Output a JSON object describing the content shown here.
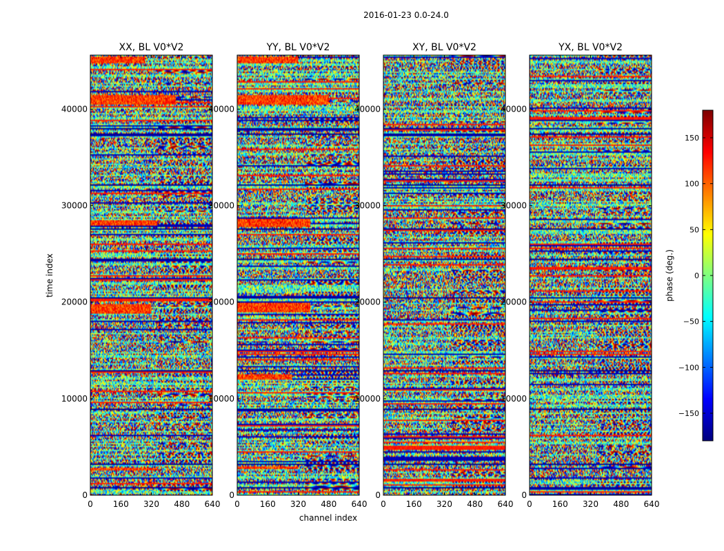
{
  "figure_title": "2016-01-23 0.0-24.0",
  "chart_data": {
    "type": "heatmap",
    "shared_axes": {
      "xlabel": "channel index",
      "ylabel": "time index",
      "xlim": [
        0,
        640
      ],
      "ylim": [
        0,
        45600
      ],
      "xticks": [
        0,
        160,
        320,
        480,
        640
      ],
      "xtick_labels": [
        "0",
        "160",
        "320",
        "480",
        "640"
      ],
      "yticks": [
        0,
        10000,
        20000,
        30000,
        40000
      ],
      "ytick_labels": [
        "0",
        "10000",
        "20000",
        "30000",
        "40000"
      ]
    },
    "panels": [
      {
        "title": "XX, BL V0*V2",
        "seed": 11,
        "warm_bands": [
          [
            44800,
            45400,
            0.45
          ],
          [
            40500,
            41500,
            0.7
          ],
          [
            27900,
            28500,
            0.55
          ],
          [
            18800,
            19800,
            0.5
          ],
          [
            2600,
            2900,
            0.55
          ]
        ]
      },
      {
        "title": "YY, BL V0*V2",
        "seed": 23,
        "warm_bands": [
          [
            44800,
            45400,
            0.5
          ],
          [
            40500,
            41500,
            0.75
          ],
          [
            27800,
            28600,
            0.6
          ],
          [
            19000,
            19900,
            0.6
          ],
          [
            12000,
            12500,
            0.45
          ],
          [
            2700,
            3000,
            0.5
          ]
        ]
      },
      {
        "title": "XY, BL V0*V2",
        "seed": 37,
        "warm_bands": []
      },
      {
        "title": "YX, BL V0*V2",
        "seed": 53,
        "warm_bands": []
      }
    ],
    "dark_stripes": [
      38000,
      37400,
      32100,
      27600,
      24500,
      20500,
      12900,
      8900,
      3200,
      800
    ],
    "colorbar": {
      "label": "phase (deg.)",
      "range": [
        -180,
        180
      ],
      "ticks": [
        -150,
        -100,
        -50,
        0,
        50,
        100,
        150
      ],
      "tick_labels": [
        "−150",
        "−100",
        "−50",
        "0",
        "50",
        "100",
        "150"
      ],
      "colormap": "jet"
    }
  }
}
